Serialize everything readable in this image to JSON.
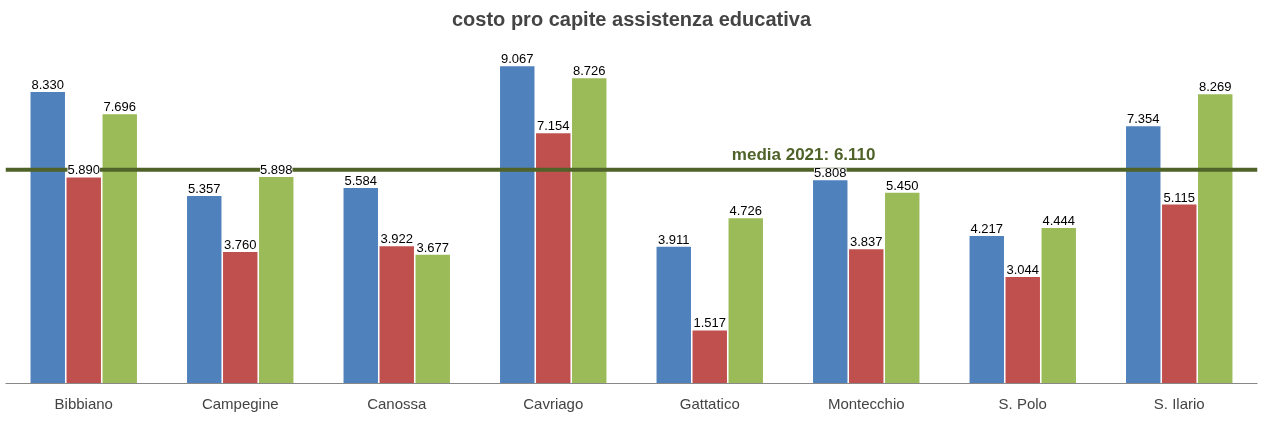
{
  "chart_data": {
    "type": "bar",
    "title": "costo pro capite assistenza educativa",
    "categories": [
      "Bibbiano",
      "Campegine",
      "Canossa",
      "Cavriago",
      "Gattatico",
      "Montecchio",
      "S. Polo",
      "S. Ilario"
    ],
    "series": [
      {
        "color": "#4f81bd",
        "values": [
          8330,
          5357,
          5584,
          9067,
          3911,
          5808,
          4217,
          7354
        ],
        "value_labels": [
          "8.330",
          "5.357",
          "5.584",
          "9.067",
          "3.911",
          "5.808",
          "4.217",
          "7.354"
        ]
      },
      {
        "color": "#c0504d",
        "values": [
          5890,
          3760,
          3922,
          7154,
          1517,
          3837,
          3044,
          5115
        ],
        "value_labels": [
          "5.890",
          "3.760",
          "3.922",
          "7.154",
          "1.517",
          "3.837",
          "3.044",
          "5.115"
        ]
      },
      {
        "color": "#9bbb59",
        "values": [
          7696,
          5898,
          3677,
          8726,
          4726,
          5450,
          4444,
          8269
        ],
        "value_labels": [
          "7.696",
          "5.898",
          "3.677",
          "8.726",
          "4.726",
          "5.450",
          "4.444",
          "8.269"
        ]
      }
    ],
    "ref_lines": [
      {
        "axis": "y",
        "value": 6110,
        "label": "media 2021: 6.110",
        "color": "#4f6228"
      }
    ],
    "grid": false
  }
}
